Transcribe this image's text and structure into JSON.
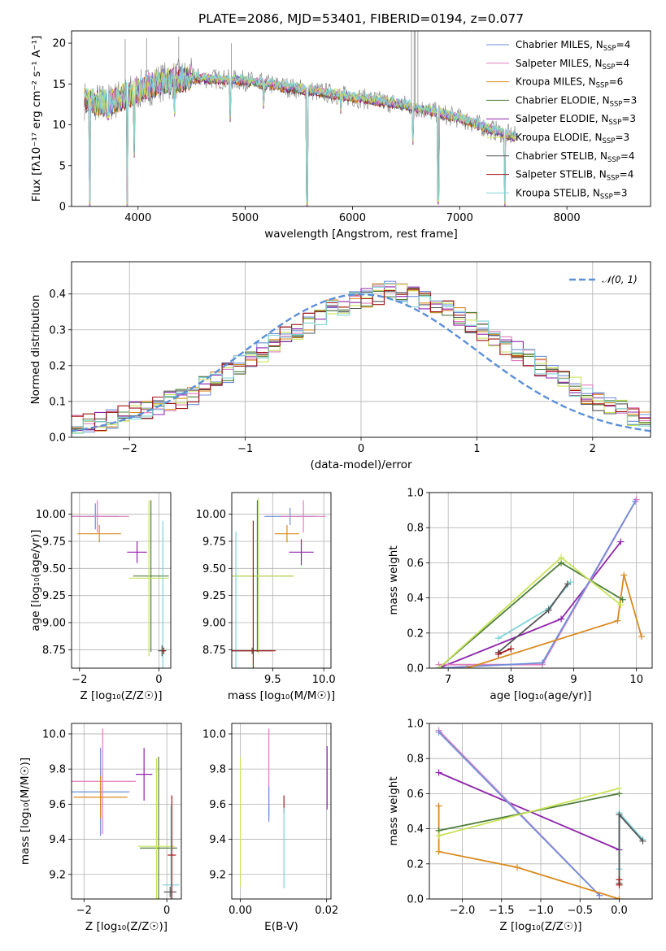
{
  "title": "PLATE=2086, MJD=53401, FIBERID=0194, z=0.077",
  "colors": {
    "Chabrier MILES": "#6f8fd8",
    "Salpeter MILES": "#e07fc0",
    "Kroupa MILES": "#d98a1e",
    "Chabrier ELODIE": "#4f7f3a",
    "Salpeter ELODIE": "#8e24aa",
    "Kroupa ELODIE": "#c9e35a",
    "Chabrier STELIB": "#555555",
    "Salpeter STELIB": "#a31515",
    "Kroupa STELIB": "#7fd3d8",
    "data": "#8c8c8c",
    "normal": "#5b8fd6",
    "weightLines": [
      "#9c27b0",
      "#e080c0",
      "#e07a20",
      "#5e8a6a",
      "#c9e35a",
      "#7fd3d8",
      "#a31515"
    ]
  },
  "chart_data": [
    {
      "id": "spectrum",
      "type": "line",
      "xlabel": "wavelength [Angstrom, rest frame]",
      "ylabel": "Flux [fλ10⁻¹⁷ erg cm⁻² s⁻¹ A⁻¹]",
      "xlim": [
        3380,
        8780
      ],
      "ylim": [
        0,
        21.5
      ],
      "xticks": [
        4000,
        5000,
        6000,
        7000,
        8000
      ],
      "yticks": [
        0,
        5,
        10,
        15,
        20
      ],
      "legend_position": "top-right",
      "legend": [
        {
          "model": "Chabrier MILES",
          "nssp": "4"
        },
        {
          "model": "Salpeter MILES",
          "nssp": "4"
        },
        {
          "model": "Kroupa MILES",
          "nssp": "6"
        },
        {
          "model": "Chabrier ELODIE",
          "nssp": "3"
        },
        {
          "model": "Salpeter ELODIE",
          "nssp": "3"
        },
        {
          "model": "Kroupa ELODIE",
          "nssp": "3"
        },
        {
          "model": "Chabrier STELIB",
          "nssp": "4"
        },
        {
          "model": "Salpeter STELIB",
          "nssp": "4"
        },
        {
          "model": "Kroupa STELIB",
          "nssp": "3"
        }
      ],
      "legend_suffix": "N",
      "legend_sub": "SSP",
      "continuum": {
        "x": [
          3500,
          3700,
          3900,
          4000,
          4200,
          4500,
          5000,
          5500,
          6000,
          6500,
          7000,
          7300,
          7500
        ],
        "y": [
          13,
          12.6,
          13.6,
          14.2,
          15.2,
          15.8,
          15.4,
          14.4,
          13.4,
          12.4,
          10.8,
          9.4,
          8.6
        ]
      },
      "dips": [
        [
          3550,
          0
        ],
        [
          3720,
          10.6
        ],
        [
          3900,
          0
        ],
        [
          3965,
          6
        ],
        [
          4340,
          11
        ],
        [
          4860,
          10.4
        ],
        [
          5170,
          12
        ],
        [
          5577,
          0
        ],
        [
          5890,
          11.4
        ],
        [
          6563,
          7.6
        ],
        [
          6800,
          0.3
        ],
        [
          7420,
          0
        ]
      ],
      "data_spikes": [
        [
          3880,
          20.5
        ],
        [
          4080,
          20.6
        ],
        [
          4380,
          20.8
        ],
        [
          4870,
          20
        ],
        [
          6550,
          21.5
        ],
        [
          6575,
          21.5
        ],
        [
          6585,
          21.5
        ],
        [
          6610,
          21.5
        ]
      ]
    },
    {
      "id": "residuals",
      "type": "line",
      "xlabel": "(data-model)/error",
      "ylabel": "Normed distribution",
      "xlim": [
        -2.5,
        2.5
      ],
      "ylim": [
        0,
        0.49
      ],
      "xticks": [
        -2,
        -1,
        0,
        1,
        2
      ],
      "yticks": [
        0,
        0.1,
        0.2,
        0.3,
        0.4
      ],
      "grid": true,
      "legend_position": "top-right",
      "legend": "𝒩(0, 1)",
      "bin_width": 0.1,
      "hist_base": [
        0.04,
        0.04,
        0.04,
        0.05,
        0.06,
        0.07,
        0.08,
        0.09,
        0.1,
        0.11,
        0.12,
        0.14,
        0.16,
        0.18,
        0.2,
        0.22,
        0.24,
        0.26,
        0.28,
        0.3,
        0.32,
        0.34,
        0.36,
        0.37,
        0.38,
        0.39,
        0.4,
        0.41,
        0.4,
        0.39,
        0.38,
        0.37,
        0.36,
        0.34,
        0.32,
        0.3,
        0.28,
        0.26,
        0.24,
        0.22,
        0.2,
        0.18,
        0.16,
        0.14,
        0.12,
        0.1,
        0.09,
        0.08,
        0.06,
        0.05
      ]
    },
    {
      "id": "age-vs-Z",
      "type": "scatter",
      "xlabel": "Z [log₁₀(Z/Z☉)]",
      "ylabel": "age [log₁₀(age/yr)]",
      "xlim": [
        -2.2,
        0.3
      ],
      "ylim": [
        8.58,
        10.2
      ],
      "xticks": [
        -2,
        0
      ],
      "yticks": [
        8.75,
        9.0,
        9.25,
        9.5,
        9.75,
        10.0
      ],
      "grid": true,
      "points": [
        {
          "model": "Chabrier MILES",
          "x": -1.6,
          "y": 9.98,
          "xerr": 0.6,
          "yerr": 0.12
        },
        {
          "model": "Salpeter MILES",
          "x": -1.55,
          "y": 9.98,
          "xerr": 0.8,
          "yerr": 0.15
        },
        {
          "model": "Kroupa MILES",
          "x": -1.5,
          "y": 9.82,
          "xerr": 0.55,
          "yerr": 0.08
        },
        {
          "model": "Salpeter ELODIE",
          "x": -0.55,
          "y": 9.65,
          "xerr": 0.25,
          "yerr": 0.1
        },
        {
          "model": "Chabrier ELODIE",
          "x": -0.2,
          "y": 9.43,
          "xerr": 0.45,
          "yerr": 0.7
        },
        {
          "model": "Kroupa ELODIE",
          "x": -0.25,
          "y": 9.41,
          "xerr": 0.5,
          "yerr": 0.72
        },
        {
          "model": "Kroupa STELIB",
          "x": 0.1,
          "y": 8.74,
          "xerr": 0.1,
          "yerr": 1.2
        },
        {
          "model": "Chabrier STELIB",
          "x": 0.08,
          "y": 8.74,
          "xerr": 0.1,
          "yerr": 0.05
        },
        {
          "model": "Salpeter STELIB",
          "x": 0.12,
          "y": 8.74,
          "xerr": 0.05,
          "yerr": 0.03
        }
      ]
    },
    {
      "id": "age-vs-mass",
      "type": "scatter",
      "xlabel": "mass [log₁₀(M/M☉)]",
      "xlim": [
        9.1,
        10.07
      ],
      "ylim": [
        8.58,
        10.2
      ],
      "xticks": [
        9.5,
        10.0
      ],
      "yticks": [
        8.75,
        9.0,
        9.25,
        9.5,
        9.75,
        10.0
      ],
      "grid": true,
      "points": [
        {
          "model": "Chabrier MILES",
          "x": 9.67,
          "y": 9.98,
          "xerr": 0.25,
          "yerr": 0.08
        },
        {
          "model": "Salpeter MILES",
          "x": 9.8,
          "y": 9.98,
          "xerr": 0.22,
          "yerr": 0.15
        },
        {
          "model": "Kroupa MILES",
          "x": 9.64,
          "y": 9.82,
          "xerr": 0.12,
          "yerr": 0.08
        },
        {
          "model": "Salpeter ELODIE",
          "x": 9.78,
          "y": 9.65,
          "xerr": 0.12,
          "yerr": 0.12
        },
        {
          "model": "Chabrier ELODIE",
          "x": 9.35,
          "y": 9.43,
          "xerr": 0.35,
          "yerr": 0.7
        },
        {
          "model": "Kroupa ELODIE",
          "x": 9.36,
          "y": 9.43,
          "xerr": 0.35,
          "yerr": 0.72
        },
        {
          "model": "Kroupa STELIB",
          "x": 9.14,
          "y": 8.74,
          "xerr": 0.18,
          "yerr": 1.1
        },
        {
          "model": "Chabrier STELIB",
          "x": 9.3,
          "y": 8.74,
          "xerr": 0.2,
          "yerr": 0.03
        },
        {
          "model": "Salpeter STELIB",
          "x": 9.31,
          "y": 8.74,
          "xerr": 0.22,
          "yerr": 1.2
        }
      ]
    },
    {
      "id": "weight-vs-age",
      "type": "line",
      "xlabel": "age [log₁₀(age/yr)]",
      "ylabel": "mass weight",
      "xlim": [
        6.7,
        10.25
      ],
      "ylim": [
        0,
        1
      ],
      "xticks": [
        7,
        8,
        9,
        10
      ],
      "yticks": [
        0,
        0.2,
        0.4,
        0.6,
        0.8,
        1.0
      ],
      "grid": true,
      "series": [
        {
          "model": "Salpeter ELODIE",
          "x": [
            6.85,
            8.8,
            9.75
          ],
          "y": [
            0.0,
            0.28,
            0.72
          ]
        },
        {
          "model": "Salpeter MILES",
          "x": [
            6.85,
            8.5,
            10.0
          ],
          "y": [
            0.02,
            0.02,
            0.96
          ]
        },
        {
          "model": "Chabrier MILES",
          "x": [
            6.85,
            8.5,
            9.98
          ],
          "y": [
            0.0,
            0.03,
            0.95
          ]
        },
        {
          "model": "Kroupa MILES",
          "x": [
            7.3,
            9.7,
            9.8,
            10.08
          ],
          "y": [
            0.0,
            0.27,
            0.53,
            0.18
          ]
        },
        {
          "model": "Chabrier ELODIE",
          "x": [
            6.85,
            8.8,
            9.78
          ],
          "y": [
            0.0,
            0.6,
            0.39
          ]
        },
        {
          "model": "Kroupa ELODIE",
          "x": [
            6.85,
            8.8,
            9.75
          ],
          "y": [
            0.0,
            0.63,
            0.36
          ]
        },
        {
          "model": "Kroupa STELIB",
          "x": [
            7.8,
            8.6,
            8.95
          ],
          "y": [
            0.17,
            0.34,
            0.49
          ]
        },
        {
          "model": "Chabrier STELIB",
          "x": [
            7.8,
            8.6,
            8.9
          ],
          "y": [
            0.09,
            0.33,
            0.48
          ]
        },
        {
          "model": "Salpeter STELIB",
          "x": [
            7.8,
            8.0
          ],
          "y": [
            0.08,
            0.11
          ]
        }
      ]
    },
    {
      "id": "mass-vs-Z",
      "type": "scatter",
      "xlabel": "Z [log₁₀(Z/Z☉)]",
      "ylabel": "mass [log₁₀(M/M☉)]",
      "xlim": [
        -2.3,
        0.35
      ],
      "ylim": [
        9.06,
        10.06
      ],
      "xticks": [
        -2,
        0
      ],
      "yticks": [
        9.2,
        9.4,
        9.6,
        9.8,
        10.0
      ],
      "grid": true,
      "points": [
        {
          "model": "Chabrier MILES",
          "x": -1.6,
          "y": 9.67,
          "xerr": 0.7,
          "yerr": 0.25
        },
        {
          "model": "Salpeter MILES",
          "x": -1.55,
          "y": 9.73,
          "xerr": 0.8,
          "yerr": 0.3
        },
        {
          "model": "Kroupa MILES",
          "x": -1.6,
          "y": 9.64,
          "xerr": 0.65,
          "yerr": 0.12
        },
        {
          "model": "Salpeter ELODIE",
          "x": -0.55,
          "y": 9.77,
          "xerr": 0.2,
          "yerr": 0.15
        },
        {
          "model": "Chabrier ELODIE",
          "x": -0.2,
          "y": 9.35,
          "xerr": 0.45,
          "yerr": 0.52
        },
        {
          "model": "Kroupa ELODIE",
          "x": -0.25,
          "y": 9.36,
          "xerr": 0.45,
          "yerr": 0.5
        },
        {
          "model": "Kroupa STELIB",
          "x": 0.1,
          "y": 9.14,
          "xerr": 0.2,
          "yerr": 0.45
        },
        {
          "model": "Chabrier STELIB",
          "x": 0.08,
          "y": 9.1,
          "xerr": 0.15,
          "yerr": 0.03
        },
        {
          "model": "Salpeter STELIB",
          "x": 0.12,
          "y": 9.31,
          "xerr": 0.1,
          "yerr": 0.34
        }
      ]
    },
    {
      "id": "mass-vs-ebv",
      "type": "scatter",
      "xlabel": "E(B-V)",
      "xlim": [
        -0.002,
        0.021
      ],
      "ylim": [
        9.06,
        10.06
      ],
      "xticks": [
        0.0,
        0.02
      ],
      "yticks": [
        9.2,
        9.4,
        9.6,
        9.8,
        10.0
      ],
      "grid": true,
      "points": [
        {
          "model": "Kroupa ELODIE",
          "x": 0.0,
          "y": 9.5,
          "yerr": 0.37
        },
        {
          "model": "Salpeter MILES",
          "x": 0.0066,
          "y": 9.78,
          "yerr": 0.25
        },
        {
          "model": "Kroupa MILES",
          "x": 0.0066,
          "y": 9.55,
          "yerr": 0.02
        },
        {
          "model": "Chabrier MILES",
          "x": 0.0066,
          "y": 9.6,
          "yerr": 0.1
        },
        {
          "model": "Salpeter STELIB",
          "x": 0.0101,
          "y": 9.6,
          "yerr": 0.05
        },
        {
          "model": "Kroupa STELIB",
          "x": 0.0101,
          "y": 9.35,
          "yerr": 0.23
        },
        {
          "model": "Salpeter ELODIE",
          "x": 0.0201,
          "y": 9.75,
          "yerr": 0.18
        }
      ]
    },
    {
      "id": "weight-vs-Z",
      "type": "line",
      "xlabel": "Z [log₁₀(Z/Z☉)]",
      "ylabel": "mass weight",
      "xlim": [
        -2.42,
        0.42
      ],
      "ylim": [
        0,
        1
      ],
      "xticks": [
        -2.0,
        -1.5,
        -1.0,
        -0.5,
        0.0
      ],
      "yticks": [
        0,
        0.2,
        0.4,
        0.6,
        0.8,
        1.0
      ],
      "grid": true,
      "series": [
        {
          "model": "Salpeter ELODIE",
          "x": [
            -2.3,
            0.0
          ],
          "y": [
            0.72,
            0.28
          ]
        },
        {
          "model": "Salpeter MILES",
          "x": [
            -2.3,
            -0.25
          ],
          "y": [
            0.96,
            0.02
          ]
        },
        {
          "model": "Chabrier MILES",
          "x": [
            -2.3,
            -0.25
          ],
          "y": [
            0.95,
            0.02
          ]
        },
        {
          "model": "Kroupa MILES",
          "x": [
            -2.3,
            -2.3,
            -1.3,
            0.0
          ],
          "y": [
            0.53,
            0.27,
            0.18,
            0.0
          ]
        },
        {
          "model": "Chabrier ELODIE",
          "x": [
            -2.3,
            0.0
          ],
          "y": [
            0.39,
            0.6
          ]
        },
        {
          "model": "Kroupa ELODIE",
          "x": [
            -2.3,
            0.0
          ],
          "y": [
            0.36,
            0.63
          ]
        },
        {
          "model": "Kroupa STELIB",
          "x": [
            0.0,
            0.0,
            0.3
          ],
          "y": [
            0.17,
            0.49,
            0.34
          ]
        },
        {
          "model": "Chabrier STELIB",
          "x": [
            0.0,
            0.0,
            0.3
          ],
          "y": [
            0.09,
            0.48,
            0.33
          ]
        },
        {
          "model": "Salpeter STELIB",
          "x": [
            0.0,
            0.0
          ],
          "y": [
            0.08,
            0.11
          ]
        }
      ]
    }
  ]
}
